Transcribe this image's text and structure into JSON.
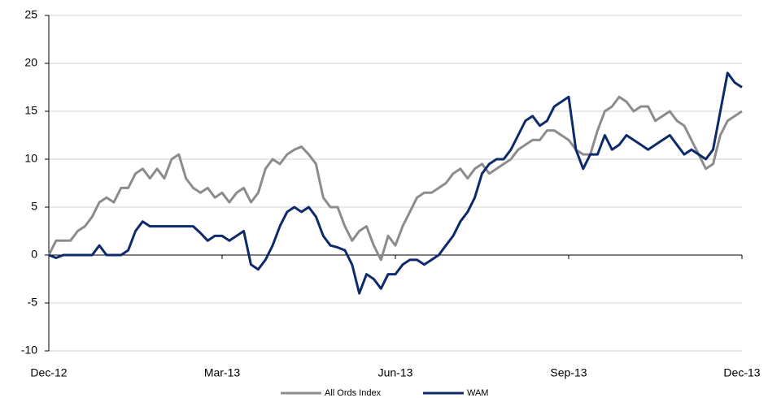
{
  "chart_data": {
    "type": "line",
    "categories": [
      "Dec-12",
      null,
      null,
      null,
      null,
      null,
      null,
      null,
      null,
      null,
      null,
      null,
      null,
      null,
      null,
      null,
      null,
      null,
      null,
      null,
      null,
      null,
      null,
      null,
      "Mar-13",
      null,
      null,
      null,
      null,
      null,
      null,
      null,
      null,
      null,
      null,
      null,
      null,
      null,
      null,
      null,
      null,
      null,
      null,
      null,
      null,
      null,
      null,
      null,
      "Jun-13",
      null,
      null,
      null,
      null,
      null,
      null,
      null,
      null,
      null,
      null,
      null,
      null,
      null,
      null,
      null,
      null,
      null,
      null,
      null,
      null,
      null,
      null,
      null,
      "Sep-13",
      null,
      null,
      null,
      null,
      null,
      null,
      null,
      null,
      null,
      null,
      null,
      null,
      null,
      null,
      null,
      null,
      null,
      null,
      null,
      null,
      null,
      null,
      null,
      "Dec-13"
    ],
    "series": [
      {
        "name": "All Ords Index",
        "color": "#8c8c8c",
        "values": [
          0,
          1.5,
          1.5,
          1.5,
          2.5,
          3,
          4,
          5.5,
          6,
          5.5,
          7,
          7,
          8.5,
          9,
          8,
          9,
          8,
          10,
          10.5,
          8,
          7,
          6.5,
          7,
          6,
          6.5,
          5.5,
          6.5,
          7,
          5.5,
          6.5,
          9,
          10,
          9.5,
          10.5,
          11,
          11.3,
          10.5,
          9.5,
          6,
          5,
          5,
          3,
          1.5,
          2.5,
          3,
          1,
          -0.5,
          2,
          1,
          3,
          4.5,
          6,
          6.5,
          6.5,
          7,
          7.5,
          8.5,
          9,
          8,
          9,
          9.5,
          8.5,
          9,
          9.5,
          10,
          11,
          11.5,
          12,
          12,
          13,
          13,
          12.5,
          12,
          11,
          10.5,
          10.5,
          13,
          15,
          15.5,
          16.5,
          16,
          15,
          15.5,
          15.5,
          14,
          14.5,
          15,
          14,
          13.5,
          12,
          10.5,
          9,
          9.5,
          12.5,
          14,
          14.5,
          15
        ]
      },
      {
        "name": "WAM",
        "color": "#0d2a6b",
        "values": [
          0,
          -0.3,
          0,
          0,
          0,
          0,
          0,
          1,
          0,
          0,
          0,
          0.5,
          2.5,
          3.5,
          3,
          3,
          3,
          3,
          3,
          3,
          3,
          2.3,
          1.5,
          2,
          2,
          1.5,
          2,
          2.5,
          -1,
          -1.5,
          -0.5,
          1,
          3,
          4.5,
          5,
          4.5,
          5,
          4,
          2,
          1,
          0.8,
          0.5,
          -1,
          -4,
          -2,
          -2.5,
          -3.5,
          -2,
          -2,
          -1,
          -0.5,
          -0.5,
          -1,
          -0.5,
          0,
          1,
          2,
          3.5,
          4.5,
          6,
          8.5,
          9.5,
          10,
          10,
          11,
          12.5,
          14,
          14.5,
          13.5,
          14,
          15.5,
          16,
          16.5,
          11,
          9,
          10.5,
          10.5,
          12.5,
          11,
          11.5,
          12.5,
          12,
          11.5,
          11,
          11.5,
          12,
          12.5,
          11.5,
          10.5,
          11,
          10.5,
          10,
          11,
          15,
          19,
          18,
          17.5
        ]
      }
    ],
    "ylim": [
      -10,
      25
    ],
    "yticks": [
      -10,
      -5,
      0,
      5,
      10,
      15,
      20,
      25
    ],
    "grid": true
  }
}
